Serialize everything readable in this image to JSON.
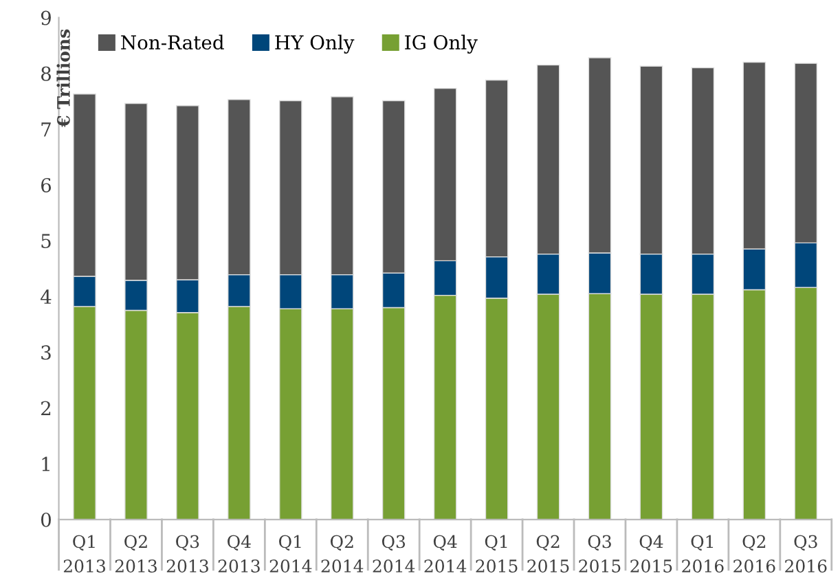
{
  "chart_data": {
    "type": "bar",
    "stacked": true,
    "ylabel": "€ Trillions",
    "categories": [
      "Q1\n2013",
      "Q2\n2013",
      "Q3\n2013",
      "Q4\n2013",
      "Q1\n2014",
      "Q2\n2014",
      "Q3\n2014",
      "Q4\n2014",
      "Q1\n2015",
      "Q2\n2015",
      "Q3\n2015",
      "Q4\n2015",
      "Q1\n2016",
      "Q2\n2016",
      "Q3\n2016"
    ],
    "series": [
      {
        "name": "IG Only",
        "color": "#77a033",
        "values": [
          3.82,
          3.75,
          3.71,
          3.82,
          3.78,
          3.78,
          3.8,
          4.02,
          3.97,
          4.04,
          4.05,
          4.04,
          4.04,
          4.12,
          4.16
        ]
      },
      {
        "name": "HY Only",
        "color": "#00467a",
        "values": [
          0.54,
          0.54,
          0.59,
          0.57,
          0.61,
          0.61,
          0.62,
          0.62,
          0.74,
          0.72,
          0.73,
          0.72,
          0.72,
          0.73,
          0.8
        ]
      },
      {
        "name": "Non-Rated",
        "color": "#555555",
        "values": [
          3.27,
          3.17,
          3.12,
          3.14,
          3.12,
          3.19,
          3.09,
          3.09,
          3.17,
          3.39,
          3.5,
          3.37,
          3.34,
          3.35,
          3.22
        ]
      }
    ],
    "ylim": [
      0,
      9
    ],
    "yticks": [
      0,
      1,
      2,
      3,
      4,
      5,
      6,
      7,
      8,
      9
    ],
    "grid": false,
    "legend": "top left"
  }
}
